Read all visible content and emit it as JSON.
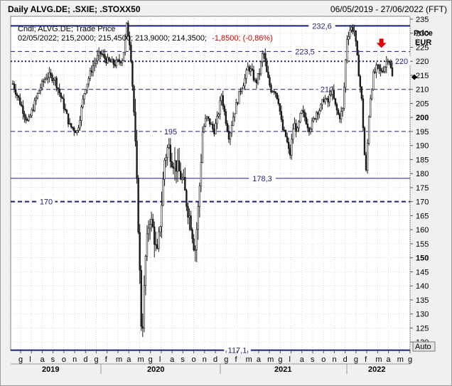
{
  "header": {
    "title": "Daily ALVG.DE; .SXIE; .STOXX50",
    "date_range": "06/05/2019 - 27/06/2022 (FFT)"
  },
  "legend": {
    "line1": "Cndl; ALVG.DE; Trade Price",
    "ohlc": "02/05/2022; 215,2000; 215,4500; 213,9000; 214,3500;",
    "change": "-1,8500; (-0,86%)"
  },
  "axis": {
    "y_title": "Price",
    "y_unit": "EUR",
    "auto_label": "Auto"
  },
  "colors": {
    "plot_bg": "#ffffff",
    "candle": "#1a1a1a",
    "level_line": "#1f1f7a",
    "level_text": "#1f1f7a",
    "negative": "#cc0000",
    "arrow": "#dd0000",
    "grid": "#d8d8d8"
  },
  "chart_data": {
    "type": "candlestick",
    "y_range": [
      117,
      236
    ],
    "y_ticks": [
      120,
      125,
      130,
      135,
      140,
      145,
      150,
      155,
      160,
      165,
      170,
      175,
      180,
      185,
      190,
      195,
      200,
      205,
      210,
      215,
      220,
      225,
      230,
      235
    ],
    "y_bold_ticks": [
      150,
      200
    ],
    "month_labels": [
      "g",
      "l",
      "a",
      "s",
      "o",
      "n",
      "d",
      "g",
      "f",
      "m",
      "a",
      "m",
      "g",
      "l",
      "a",
      "s",
      "o",
      "n",
      "d",
      "g",
      "f",
      "m",
      "a",
      "m",
      "g",
      "l",
      "a",
      "s",
      "o",
      "n",
      "d",
      "g",
      "f",
      "m",
      "a",
      "m",
      "g"
    ],
    "year_labels": [
      "2019",
      "2020",
      "2021",
      "2022"
    ],
    "levels": [
      {
        "value": 232.6,
        "label": "232,6",
        "style": "solid",
        "weight": 2
      },
      {
        "value": 223.5,
        "label": "223,5",
        "style": "dashed",
        "weight": 1
      },
      {
        "value": 220,
        "label": "220",
        "style": "dotted",
        "weight": 2
      },
      {
        "value": 210,
        "label": "210",
        "style": "dashed",
        "weight": 1
      },
      {
        "value": 195,
        "label": "195",
        "style": "dashed",
        "weight": 1
      },
      {
        "value": 178.3,
        "label": "178,3",
        "style": "solid",
        "weight": 1
      },
      {
        "value": 170,
        "label": "170",
        "style": "dashed",
        "weight": 2
      },
      {
        "value": 117.1,
        "label": "117,1",
        "style": "solid",
        "weight": 2
      }
    ],
    "last_price": 214.35,
    "price_path": [
      [
        0,
        212
      ],
      [
        2,
        205
      ],
      [
        4,
        198
      ],
      [
        7,
        210
      ],
      [
        9,
        215
      ],
      [
        11,
        214
      ],
      [
        13,
        206
      ],
      [
        15,
        197
      ],
      [
        17,
        195
      ],
      [
        19,
        210
      ],
      [
        21,
        218
      ],
      [
        23,
        223
      ],
      [
        25,
        220
      ],
      [
        27,
        219
      ],
      [
        29,
        221
      ],
      [
        30,
        232.6
      ],
      [
        31,
        225
      ],
      [
        32,
        200
      ],
      [
        33,
        165
      ],
      [
        34,
        120
      ],
      [
        35,
        150
      ],
      [
        36,
        165
      ],
      [
        37,
        160
      ],
      [
        38,
        150
      ],
      [
        39,
        165
      ],
      [
        40,
        185
      ],
      [
        41,
        190
      ],
      [
        42,
        185
      ],
      [
        43,
        183
      ],
      [
        44,
        180
      ],
      [
        45,
        176
      ],
      [
        46,
        168
      ],
      [
        47,
        162
      ],
      [
        48,
        152
      ],
      [
        49,
        170
      ],
      [
        50,
        195
      ],
      [
        51,
        200
      ],
      [
        52,
        198
      ],
      [
        53,
        195
      ],
      [
        54,
        200
      ],
      [
        55,
        208
      ],
      [
        56,
        200
      ],
      [
        57,
        193
      ],
      [
        58,
        200
      ],
      [
        59,
        205
      ],
      [
        60,
        210
      ],
      [
        61,
        213
      ],
      [
        62,
        218
      ],
      [
        63,
        216
      ],
      [
        64,
        212
      ],
      [
        65,
        216
      ],
      [
        66,
        224
      ],
      [
        67,
        215
      ],
      [
        68,
        210
      ],
      [
        69,
        210
      ],
      [
        70,
        206
      ],
      [
        71,
        196
      ],
      [
        72,
        193
      ],
      [
        73,
        186
      ],
      [
        74,
        198
      ],
      [
        75,
        195
      ],
      [
        76,
        202
      ],
      [
        77,
        200
      ],
      [
        78,
        196
      ],
      [
        79,
        198
      ],
      [
        80,
        202
      ],
      [
        81,
        203
      ],
      [
        82,
        207
      ],
      [
        83,
        205
      ],
      [
        84,
        210
      ],
      [
        85,
        204
      ],
      [
        86,
        200
      ],
      [
        87,
        203
      ],
      [
        88,
        228
      ],
      [
        89,
        232
      ],
      [
        90,
        231
      ],
      [
        91,
        218
      ],
      [
        92,
        205
      ],
      [
        93,
        178.5
      ],
      [
        94,
        205
      ],
      [
        95,
        215
      ],
      [
        96,
        218
      ],
      [
        97,
        216
      ],
      [
        98,
        218
      ],
      [
        99,
        222
      ],
      [
        100,
        214.35
      ]
    ],
    "arrow_at": 99
  }
}
